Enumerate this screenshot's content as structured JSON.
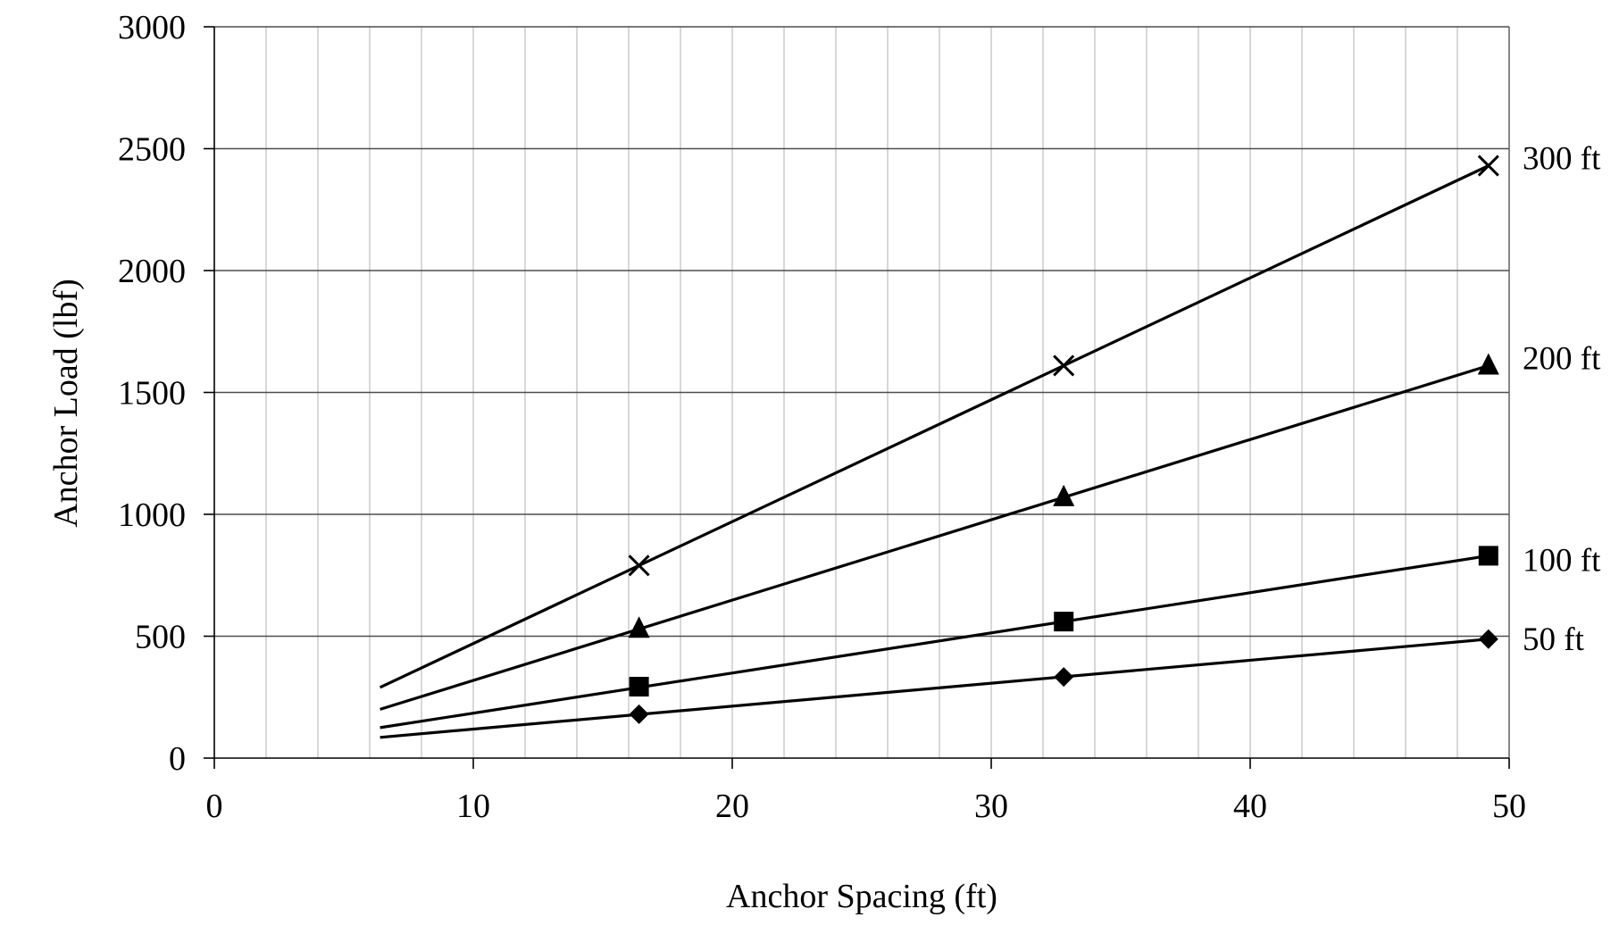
{
  "chart_data": {
    "type": "line",
    "xlabel": "Anchor Spacing (ft)",
    "ylabel": "Anchor Load (lbf)",
    "xlim": [
      0,
      50
    ],
    "ylim": [
      0,
      3000
    ],
    "x_ticks": [
      "0",
      "10",
      "20",
      "30",
      "40",
      "50"
    ],
    "y_ticks": [
      "0",
      "500",
      "1000",
      "1500",
      "2000",
      "2500",
      "3000"
    ],
    "grid": {
      "major_horizontal": true,
      "minor_vertical": true,
      "minor_vertical_step": 2
    },
    "series_label_placement": "right of plot, at end of each line",
    "marker_x": [
      16.4,
      32.8,
      49.2
    ],
    "series": [
      {
        "name": "50 ft",
        "marker": "diamond",
        "line": {
          "x": [
            6.4,
            49.2
          ],
          "y": [
            85,
            488
          ]
        },
        "marker_y": [
          180,
          333,
          488
        ]
      },
      {
        "name": "100 ft",
        "marker": "square",
        "line": {
          "x": [
            6.4,
            49.2
          ],
          "y": [
            125,
            830
          ]
        },
        "marker_y": [
          293,
          560,
          830
        ]
      },
      {
        "name": "200 ft",
        "marker": "triangle",
        "line": {
          "x": [
            6.4,
            49.2
          ],
          "y": [
            200,
            1610
          ]
        },
        "marker_y": [
          530,
          1070,
          1610
        ]
      },
      {
        "name": "300 ft",
        "marker": "x",
        "line": {
          "x": [
            6.4,
            49.2
          ],
          "y": [
            290,
            2430
          ]
        },
        "marker_y": [
          790,
          1610,
          2430
        ]
      }
    ]
  }
}
